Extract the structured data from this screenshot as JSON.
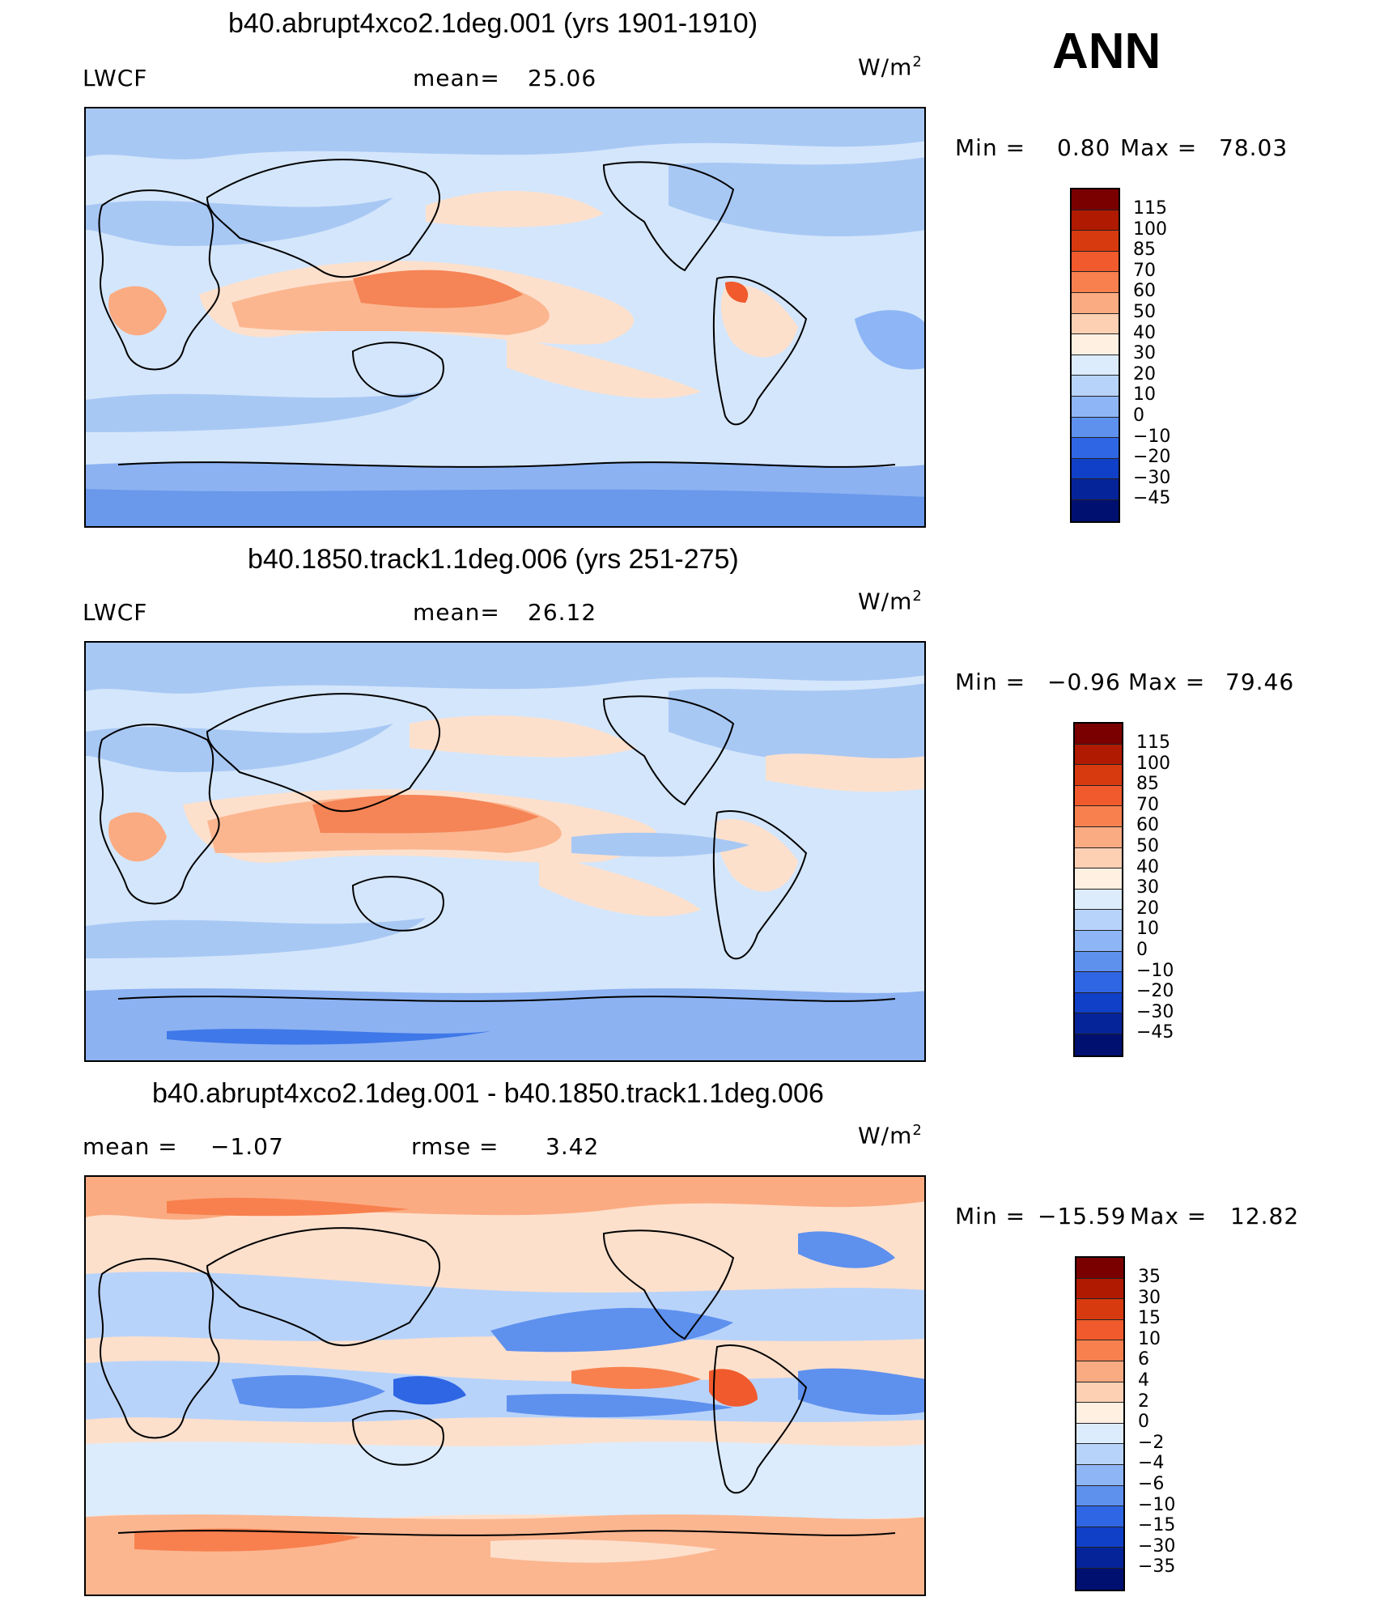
{
  "season": "ANN",
  "units": "W/m",
  "units_sup": "2",
  "panels": [
    {
      "title": "b40.abrupt4xco2.1deg.001 (yrs 1901-1910)",
      "left_label": "LWCF",
      "stat1_label": "mean=",
      "stat1_value": "25.06",
      "min_label": "Min  =",
      "min_value": "0.80",
      "max_label": "Max  =",
      "max_value": "78.03",
      "levels": [
        "115",
        "100",
        "85",
        "70",
        "60",
        "50",
        "40",
        "30",
        "20",
        "10",
        "0",
        "−10",
        "−20",
        "−30",
        "−45"
      ]
    },
    {
      "title": "b40.1850.track1.1deg.006 (yrs 251-275)",
      "left_label": "LWCF",
      "stat1_label": "mean=",
      "stat1_value": "26.12",
      "min_label": "Min  =",
      "min_value": "−0.96",
      "max_label": "Max  =",
      "max_value": "79.46",
      "levels": [
        "115",
        "100",
        "85",
        "70",
        "60",
        "50",
        "40",
        "30",
        "20",
        "10",
        "0",
        "−10",
        "−20",
        "−30",
        "−45"
      ]
    },
    {
      "title": "b40.abrupt4xco2.1deg.001 - b40.1850.track1.1deg.006",
      "left_label": "mean  =",
      "left_value": "−1.07",
      "stat1_label": "rmse  =",
      "stat1_value": "3.42",
      "min_label": "Min  =",
      "min_value": "−15.59",
      "max_label": "Max  =",
      "max_value": "12.82",
      "levels": [
        "35",
        "30",
        "15",
        "10",
        "6",
        "4",
        "2",
        "0",
        "−2",
        "−4",
        "−6",
        "−10",
        "−15",
        "−30",
        "−35"
      ]
    }
  ],
  "colorbar_colors": [
    "#7a0000",
    "#b01a00",
    "#d83a10",
    "#f05a2c",
    "#f8804e",
    "#fbab82",
    "#fdd0b4",
    "#fff0e2",
    "#dcecfc",
    "#b8d3fa",
    "#8eb6f6",
    "#5e90ee",
    "#2f66e4",
    "#1040c8",
    "#06249a",
    "#001070"
  ]
}
